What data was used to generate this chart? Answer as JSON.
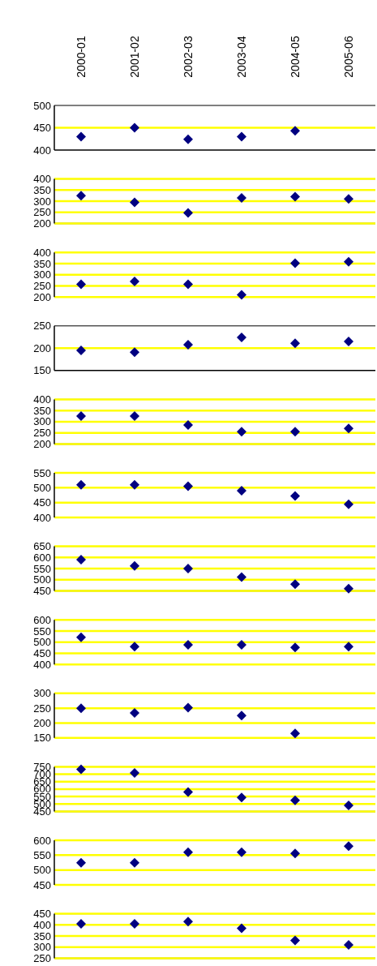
{
  "chart_data": [
    {
      "type": "scatter",
      "categories": [
        "2000-01",
        "2001-02",
        "2002-03",
        "2003-04",
        "2004-05",
        "2005-06"
      ],
      "values": [
        430,
        450,
        424,
        430,
        443,
        null
      ],
      "color": "#000080",
      "ylim": [
        400,
        500
      ],
      "yticks": [
        400,
        450,
        500
      ],
      "ref_lines": [
        {
          "axis": "y",
          "value": 450,
          "color": "#ffff00"
        }
      ],
      "marker": "diamond"
    },
    {
      "type": "scatter",
      "categories": [
        "2000-01",
        "2001-02",
        "2002-03",
        "2003-04",
        "2004-05",
        "2005-06"
      ],
      "values": [
        325,
        295,
        248,
        315,
        320,
        310
      ],
      "color": "#000080",
      "ylim": [
        200,
        400
      ],
      "yticks": [
        200,
        250,
        300,
        350,
        400
      ],
      "grid": "y",
      "marker": "diamond",
      "tick_labels": "y"
    },
    {
      "type": "scatter",
      "categories": [
        "2000-01",
        "2001-02",
        "2002-03",
        "2003-04",
        "2004-05",
        "2005-06"
      ],
      "values": [
        257,
        270,
        257,
        210,
        352,
        358
      ],
      "color": "#000080",
      "ylim": [
        200,
        400
      ],
      "yticks": [
        200,
        250,
        300,
        350,
        400
      ],
      "grid": "y",
      "marker": "diamond",
      "tick_labels": "y"
    },
    {
      "type": "scatter",
      "categories": [
        "2000-01",
        "2001-02",
        "2002-03",
        "2003-04",
        "2004-05",
        "2005-06"
      ],
      "values": [
        195,
        191,
        208,
        224,
        211,
        215
      ],
      "color": "#000080",
      "ylim": [
        150,
        250
      ],
      "yticks": [
        150,
        200,
        250
      ],
      "ref_lines": [
        {
          "axis": "y",
          "value": 200,
          "color": "#ffff00"
        }
      ],
      "marker": "diamond",
      "tick_labels": "y"
    },
    {
      "type": "scatter",
      "categories": [
        "2000-01",
        "2001-02",
        "2002-03",
        "2003-04",
        "2004-05",
        "2005-06"
      ],
      "values": [
        325,
        325,
        285,
        255,
        255,
        270
      ],
      "color": "#000080",
      "ylim": [
        200,
        400
      ],
      "yticks": [
        200,
        250,
        300,
        350,
        400
      ],
      "grid": "y",
      "marker": "diamond",
      "tick_labels": "y"
    },
    {
      "type": "scatter",
      "categories": [
        "2000-01",
        "2001-02",
        "2002-03",
        "2003-04",
        "2004-05",
        "2005-06"
      ],
      "values": [
        510,
        510,
        505,
        490,
        472,
        444
      ],
      "color": "#000080",
      "ylim": [
        400,
        550
      ],
      "yticks": [
        400,
        450,
        500,
        550
      ],
      "grid": "y",
      "marker": "diamond",
      "tick_labels": "y"
    },
    {
      "type": "scatter",
      "categories": [
        "2000-01",
        "2001-02",
        "2002-03",
        "2003-04",
        "2004-05",
        "2005-06"
      ],
      "values": [
        590,
        562,
        550,
        512,
        480,
        460
      ],
      "color": "#000080",
      "ylim": [
        450,
        650
      ],
      "yticks": [
        450,
        500,
        550,
        600,
        650
      ],
      "grid": "y",
      "marker": "diamond",
      "tick_labels": "y"
    },
    {
      "type": "scatter",
      "categories": [
        "2000-01",
        "2001-02",
        "2002-03",
        "2003-04",
        "2004-05",
        "2005-06"
      ],
      "values": [
        522,
        480,
        488,
        488,
        476,
        480
      ],
      "color": "#000080",
      "ylim": [
        400,
        600
      ],
      "yticks": [
        400,
        450,
        500,
        550,
        600
      ],
      "grid": "y",
      "marker": "diamond",
      "tick_labels": "y"
    },
    {
      "type": "scatter",
      "categories": [
        "2000-01",
        "2001-02",
        "2002-03",
        "2003-04",
        "2004-05",
        "2005-06"
      ],
      "values": [
        250,
        234,
        252,
        225,
        165,
        null
      ],
      "color": "#000080",
      "ylim": [
        150,
        300
      ],
      "yticks": [
        150,
        200,
        250,
        300
      ],
      "grid": "y",
      "marker": "diamond",
      "tick_labels": "y"
    },
    {
      "type": "scatter",
      "categories": [
        "2000-01",
        "2001-02",
        "2002-03",
        "2003-04",
        "2004-05",
        "2005-06"
      ],
      "values": [
        733,
        709,
        581,
        543,
        524,
        491
      ],
      "color": "#000080",
      "ylim": [
        450,
        750
      ],
      "yticks": [
        450,
        500,
        550,
        600,
        650,
        700,
        750
      ],
      "grid": "y",
      "marker": "diamond",
      "tick_labels": "y"
    },
    {
      "type": "scatter",
      "categories": [
        "2000-01",
        "2001-02",
        "2002-03",
        "2003-04",
        "2004-05",
        "2005-06"
      ],
      "values": [
        524,
        524,
        560,
        560,
        556,
        580
      ],
      "color": "#000080",
      "ylim": [
        450,
        600
      ],
      "yticks": [
        450,
        500,
        550,
        600
      ],
      "grid": "y",
      "marker": "diamond",
      "tick_labels": "y"
    },
    {
      "type": "scatter",
      "categories": [
        "2000-01",
        "2001-02",
        "2002-03",
        "2003-04",
        "2004-05",
        "2005-06"
      ],
      "values": [
        405,
        405,
        415,
        385,
        330,
        310
      ],
      "color": "#000080",
      "ylim": [
        250,
        450
      ],
      "yticks": [
        250,
        300,
        350,
        400,
        450
      ],
      "grid": "y",
      "marker": "diamond",
      "tick_labels": "y"
    }
  ]
}
